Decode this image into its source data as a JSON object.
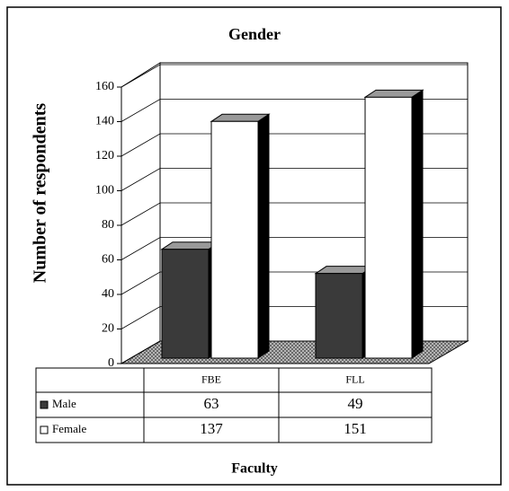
{
  "chart_data": {
    "type": "bar3d",
    "title": "Gender",
    "y_label": "Number of respondents",
    "x_label": "Faculty",
    "categories": [
      "FBE",
      "FLL"
    ],
    "series": [
      {
        "name": "Male",
        "color": "#3a3a3a",
        "values": [
          63,
          49
        ]
      },
      {
        "name": "Female",
        "color": "#ffffff",
        "values": [
          137,
          151
        ]
      }
    ],
    "ylim": [
      0,
      160
    ],
    "yticks": [
      0,
      20,
      40,
      60,
      80,
      100,
      120,
      140,
      160
    ],
    "grid": true
  }
}
